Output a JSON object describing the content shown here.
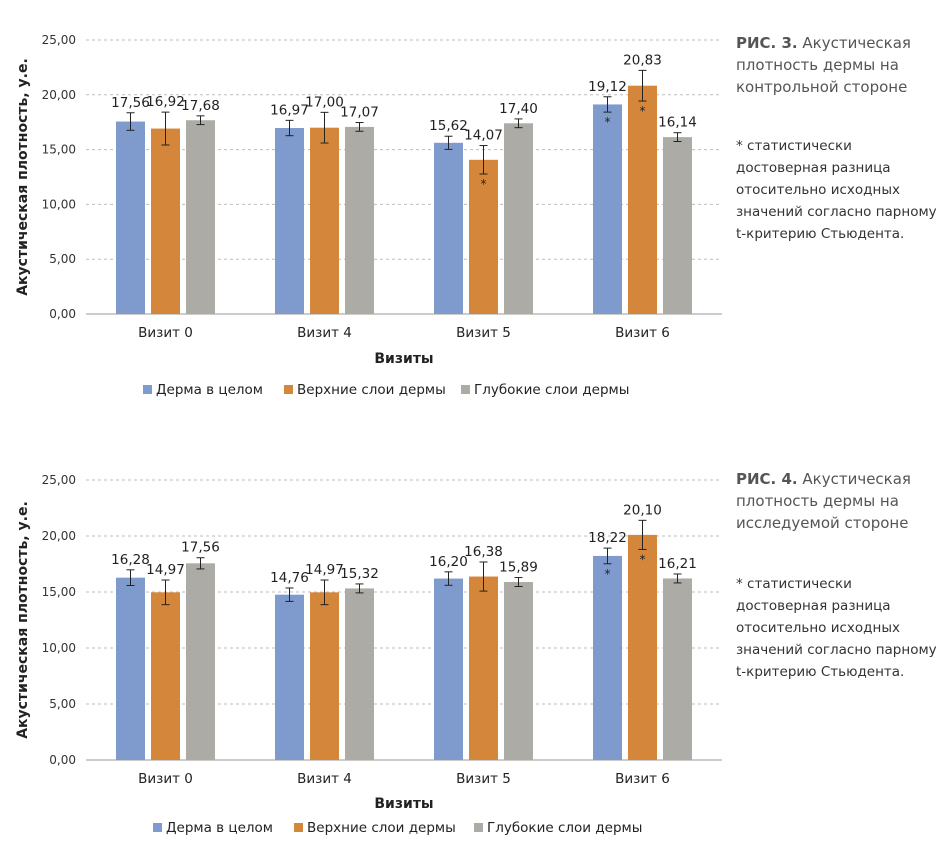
{
  "chart_data": [
    {
      "type": "bar",
      "categories": [
        "Визит 0",
        "Визит 4",
        "Визит 5",
        "Визит 6"
      ],
      "series": [
        {
          "name": "Дерма в целом",
          "color": "#7f9acd",
          "values": [
            17.56,
            16.97,
            15.62,
            19.12
          ],
          "labels": [
            "17,56",
            "16,97",
            "15,62",
            "19,12"
          ],
          "errors": [
            0.8,
            0.7,
            0.6,
            0.7
          ],
          "significant": [
            false,
            false,
            false,
            true
          ]
        },
        {
          "name": "Верхние слои дермы",
          "color": "#d4873b",
          "values": [
            16.92,
            17.0,
            14.07,
            20.83
          ],
          "labels": [
            "16,92",
            "17,00",
            "14,07",
            "20,83"
          ],
          "errors": [
            1.5,
            1.4,
            1.3,
            1.4
          ],
          "significant": [
            false,
            false,
            true,
            true
          ]
        },
        {
          "name": "Глубокие слои дермы",
          "color": "#adaba6",
          "values": [
            17.68,
            17.07,
            17.4,
            16.14
          ],
          "labels": [
            "17,68",
            "17,07",
            "17,40",
            "16,14"
          ],
          "errors": [
            0.4,
            0.4,
            0.4,
            0.4
          ],
          "significant": [
            false,
            false,
            false,
            false
          ]
        }
      ],
      "ylim": [
        0,
        25
      ],
      "yticks": [
        "0,00",
        "5,00",
        "10,00",
        "15,00",
        "20,00",
        "25,00"
      ],
      "xlabel": "Визиты",
      "ylabel": "Акустическая плотность, у.е.",
      "grid": true,
      "legend": "bottom",
      "significance_marker": "*"
    },
    {
      "type": "bar",
      "categories": [
        "Визит 0",
        "Визит 4",
        "Визит 5",
        "Визит 6"
      ],
      "series": [
        {
          "name": "Дерма в целом",
          "color": "#7f9acd",
          "values": [
            16.28,
            14.76,
            16.2,
            18.22
          ],
          "labels": [
            "16,28",
            "14,76",
            "16,20",
            "18,22"
          ],
          "errors": [
            0.7,
            0.6,
            0.6,
            0.7
          ],
          "significant": [
            false,
            false,
            false,
            true
          ]
        },
        {
          "name": "Верхние слои дермы",
          "color": "#d4873b",
          "values": [
            14.97,
            14.97,
            16.38,
            20.1
          ],
          "labels": [
            "14,97",
            "14,97",
            "16,38",
            "20,10"
          ],
          "errors": [
            1.1,
            1.1,
            1.3,
            1.3
          ],
          "significant": [
            false,
            false,
            false,
            true
          ]
        },
        {
          "name": "Глубокие слои дермы",
          "color": "#adaba6",
          "values": [
            17.56,
            15.32,
            15.89,
            16.21
          ],
          "labels": [
            "17,56",
            "15,32",
            "15,89",
            "16,21"
          ],
          "errors": [
            0.5,
            0.4,
            0.4,
            0.4
          ],
          "significant": [
            false,
            false,
            false,
            false
          ]
        }
      ],
      "ylim": [
        0,
        25
      ],
      "yticks": [
        "0,00",
        "5,00",
        "10,00",
        "15,00",
        "20,00",
        "25,00"
      ],
      "xlabel": "Визиты",
      "ylabel": "Акустическая плотность, у.е.",
      "grid": true,
      "legend": "bottom",
      "significance_marker": "*"
    }
  ],
  "captions": [
    {
      "fig": "РИС. 3.",
      "text": "Акустическая плотность дермы на контрольной стороне",
      "note": "* статистически достоверная разница отосительно исходных значений согласно парному t-критерию Стьюдента."
    },
    {
      "fig": "РИС. 4.",
      "text": "Акустическая плотность дермы на исследуемой стороне",
      "note": "* статистически достоверная разница отосительно исходных значений согласно парному t-критерию Стьюдента."
    }
  ]
}
